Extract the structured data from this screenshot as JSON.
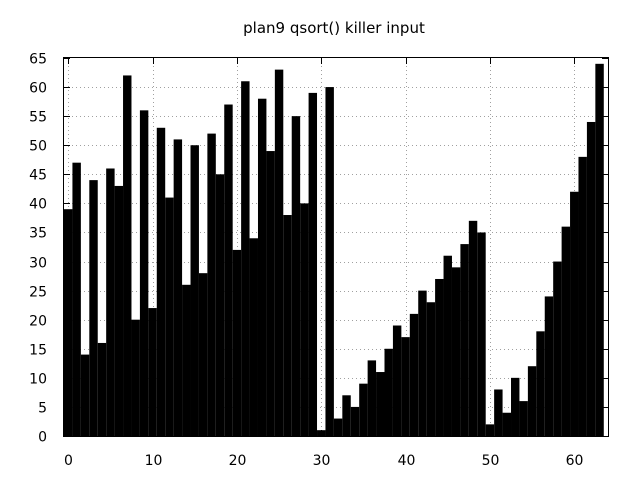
{
  "chart_data": {
    "type": "bar",
    "title": "plan9 qsort() killer input",
    "xlabel": "",
    "ylabel": "",
    "xlim": [
      -0.5,
      64
    ],
    "ylim": [
      0,
      65
    ],
    "xticks": [
      0,
      10,
      20,
      30,
      40,
      50,
      60
    ],
    "yticks": [
      0,
      5,
      10,
      15,
      20,
      25,
      30,
      35,
      40,
      45,
      50,
      55,
      60,
      65
    ],
    "grid": true,
    "legend": "none",
    "bar_color": "#000000",
    "x": [
      0,
      1,
      2,
      3,
      4,
      5,
      6,
      7,
      8,
      9,
      10,
      11,
      12,
      13,
      14,
      15,
      16,
      17,
      18,
      19,
      20,
      21,
      22,
      23,
      24,
      25,
      26,
      27,
      28,
      29,
      30,
      31,
      32,
      33,
      34,
      35,
      36,
      37,
      38,
      39,
      40,
      41,
      42,
      43,
      44,
      45,
      46,
      47,
      48,
      49,
      50,
      51,
      52,
      53,
      54,
      55,
      56,
      57,
      58,
      59,
      60,
      61,
      62,
      63
    ],
    "values": [
      39,
      47,
      14,
      44,
      16,
      46,
      43,
      62,
      20,
      56,
      22,
      53,
      41,
      51,
      26,
      50,
      28,
      52,
      45,
      57,
      32,
      61,
      34,
      58,
      49,
      63,
      38,
      55,
      40,
      59,
      1,
      60,
      3,
      7,
      5,
      9,
      13,
      11,
      15,
      19,
      17,
      21,
      25,
      23,
      27,
      31,
      29,
      33,
      37,
      35,
      2,
      8,
      4,
      10,
      6,
      12,
      18,
      24,
      30,
      36,
      42,
      48,
      54,
      64
    ]
  }
}
